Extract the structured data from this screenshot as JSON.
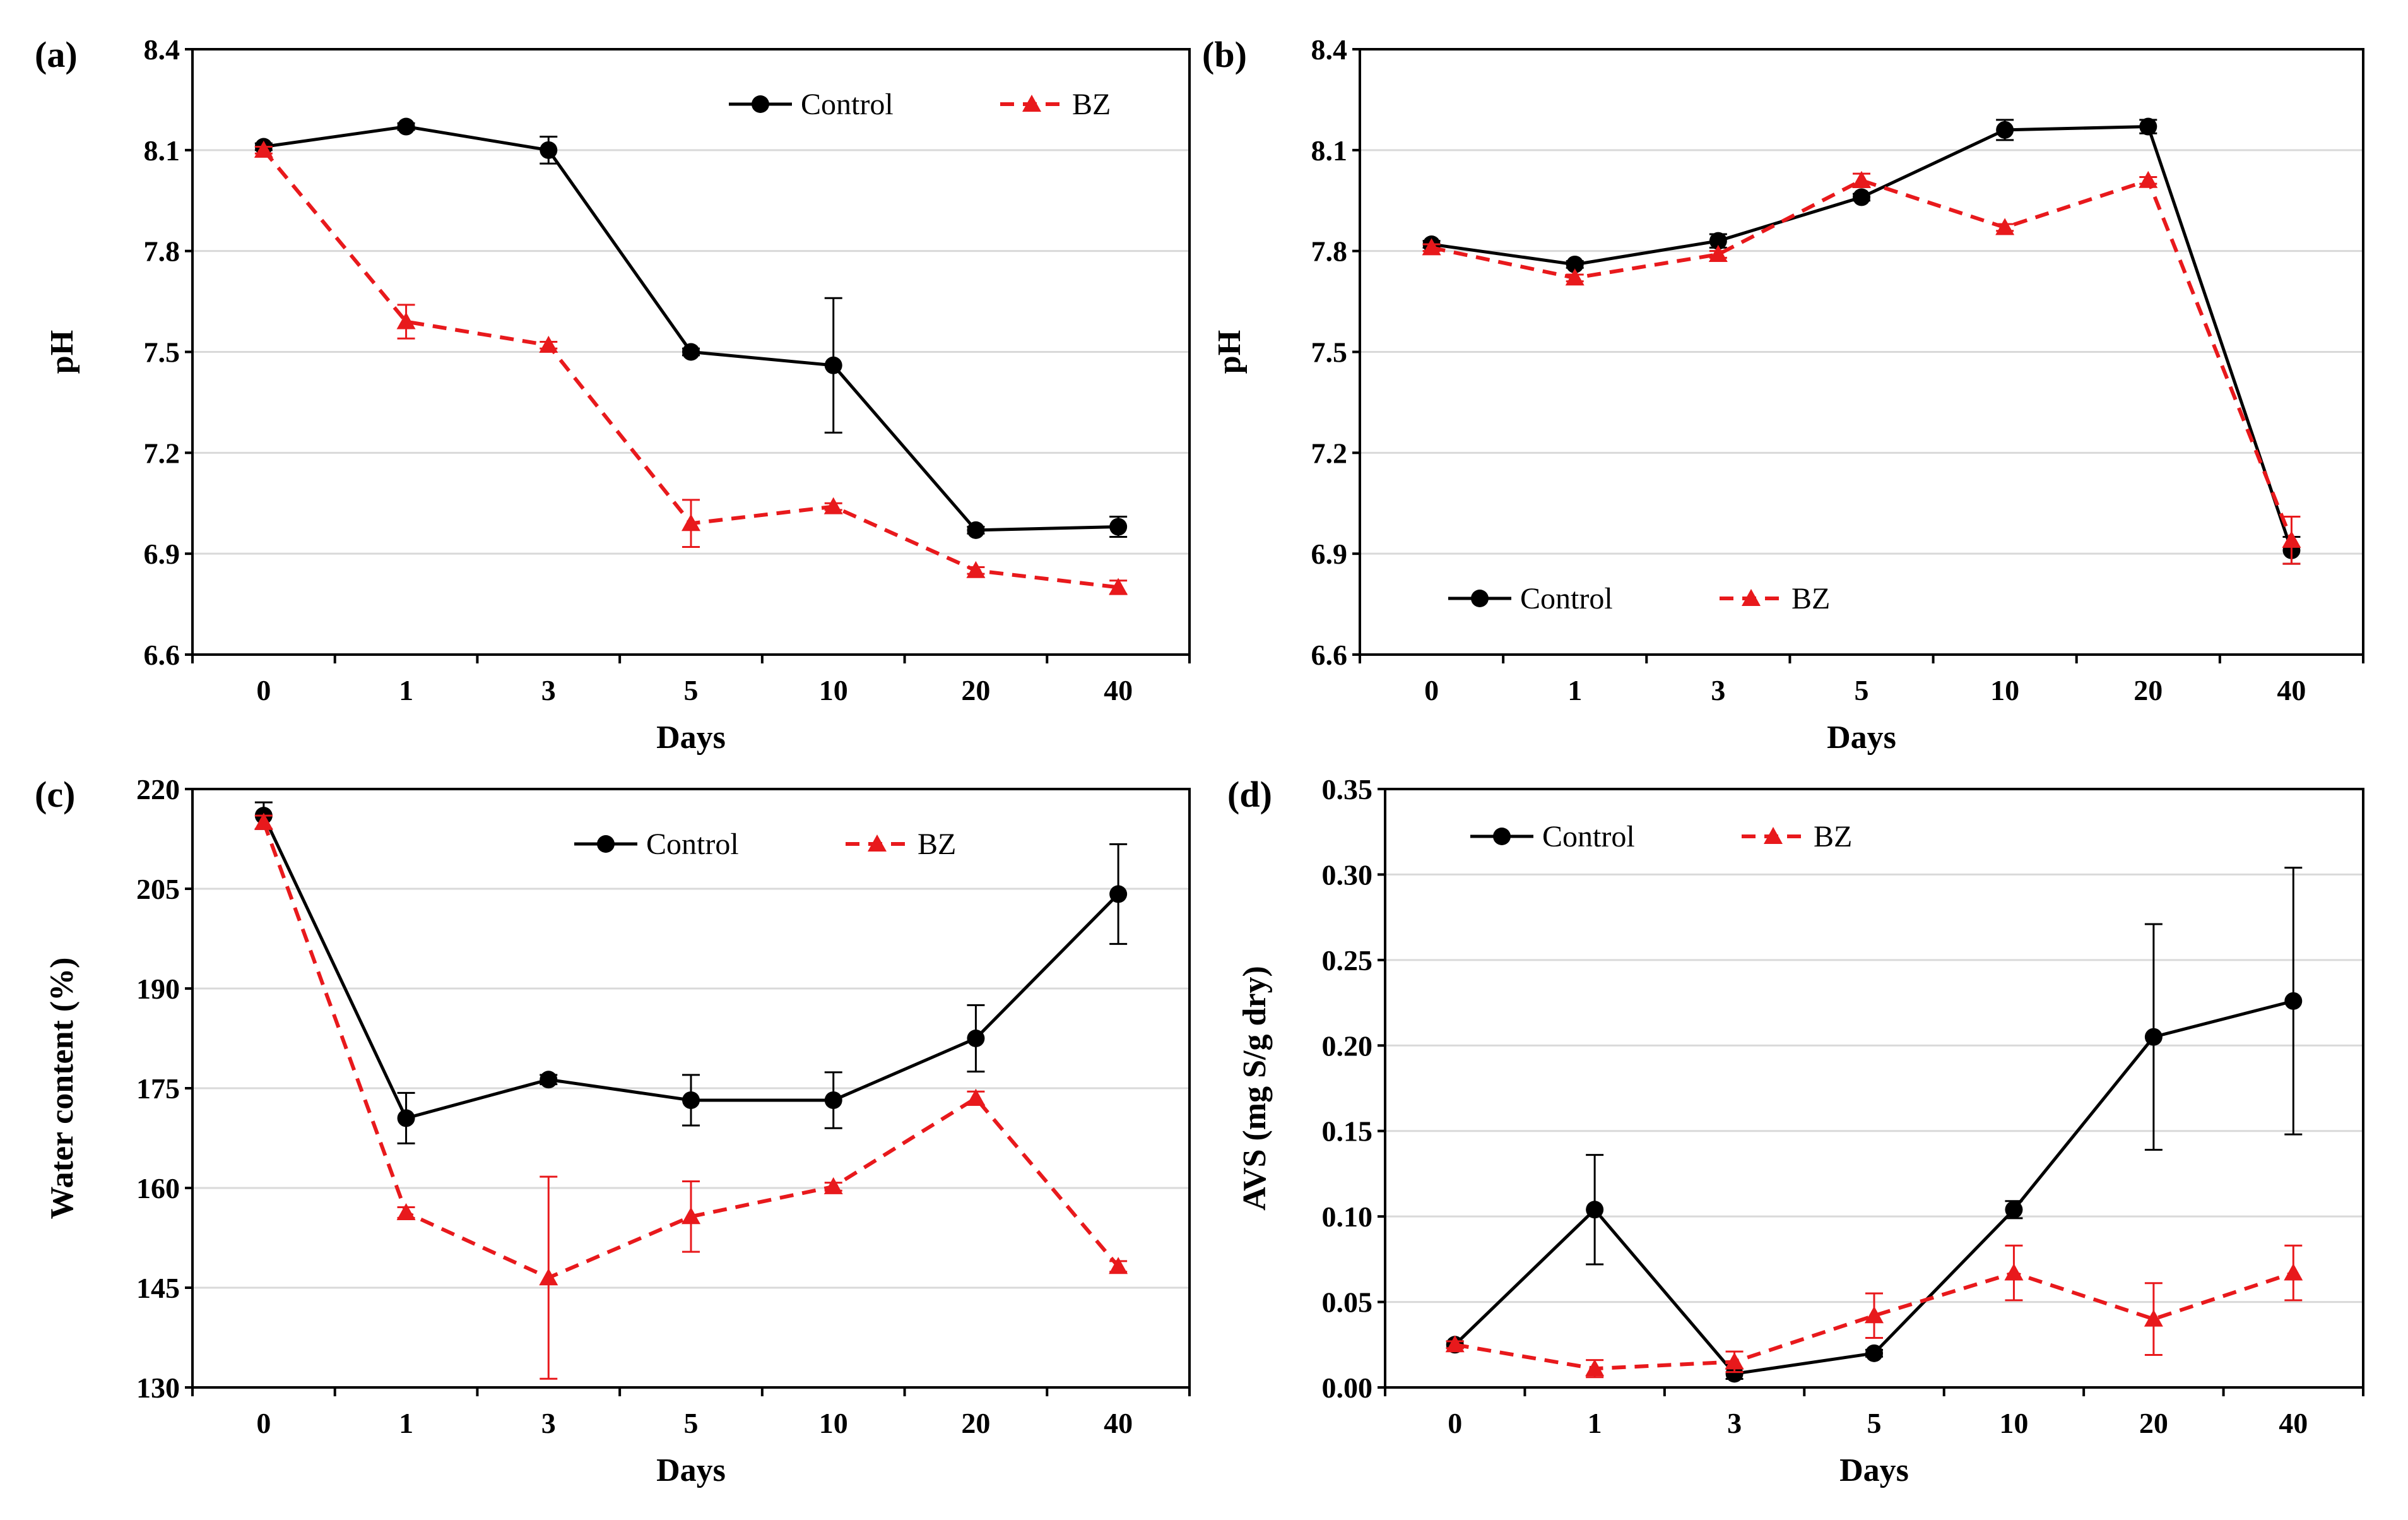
{
  "colors": {
    "control": "#000000",
    "bz": "#e8191c",
    "grid": "#d9d9d9",
    "axis": "#000000"
  },
  "legend": {
    "control_label": "Control",
    "bz_label": "BZ"
  },
  "chart_data": [
    {
      "id": "a",
      "panel_label": "(a)",
      "type": "line",
      "xlabel": "Days",
      "ylabel": "pH",
      "categories": [
        "0",
        "1",
        "3",
        "5",
        "10",
        "20",
        "40"
      ],
      "ylim": [
        6.6,
        8.4
      ],
      "yticks": [
        "6.6",
        "6.9",
        "7.2",
        "7.5",
        "7.8",
        "8.1",
        "8.4"
      ],
      "legend_position": "top-right",
      "series": [
        {
          "name": "Control",
          "values": [
            8.11,
            8.17,
            8.1,
            7.5,
            7.46,
            6.97,
            6.98
          ],
          "errors": [
            0.01,
            0.01,
            0.04,
            0.01,
            0.2,
            0.01,
            0.03
          ]
        },
        {
          "name": "BZ",
          "values": [
            8.1,
            7.59,
            7.52,
            6.99,
            7.04,
            6.85,
            6.8
          ],
          "errors": [
            0.01,
            0.05,
            0.01,
            0.07,
            0.01,
            0.01,
            0.02
          ]
        }
      ]
    },
    {
      "id": "b",
      "panel_label": "(b)",
      "type": "line",
      "xlabel": "Days",
      "ylabel": "pH",
      "categories": [
        "0",
        "1",
        "3",
        "5",
        "10",
        "20",
        "40"
      ],
      "ylim": [
        6.6,
        8.4
      ],
      "yticks": [
        "6.6",
        "6.9",
        "7.2",
        "7.5",
        "7.8",
        "8.1",
        "8.4"
      ],
      "legend_position": "bottom-left",
      "series": [
        {
          "name": "Control",
          "values": [
            7.82,
            7.76,
            7.83,
            7.96,
            8.16,
            8.17,
            6.91
          ],
          "errors": [
            0.01,
            0.01,
            0.02,
            0.01,
            0.03,
            0.02,
            0.04
          ]
        },
        {
          "name": "BZ",
          "values": [
            7.81,
            7.72,
            7.79,
            8.01,
            7.87,
            8.01,
            6.94
          ],
          "errors": [
            0.01,
            0.01,
            0.01,
            0.02,
            0.01,
            0.01,
            0.07
          ]
        }
      ]
    },
    {
      "id": "c",
      "panel_label": "(c)",
      "type": "line",
      "xlabel": "Days",
      "ylabel": "Water content (%)",
      "categories": [
        "0",
        "1",
        "3",
        "5",
        "10",
        "20",
        "40"
      ],
      "ylim": [
        130,
        220
      ],
      "yticks": [
        "130",
        "145",
        "160",
        "175",
        "190",
        "205",
        "220"
      ],
      "legend_position": "top-right",
      "series": [
        {
          "name": "Control",
          "values": [
            216,
            170.5,
            176.3,
            173.2,
            173.2,
            182.5,
            204.2
          ],
          "errors": [
            2.0,
            3.8,
            0.7,
            3.8,
            4.2,
            5.0,
            7.5
          ]
        },
        {
          "name": "BZ",
          "values": [
            215,
            156.3,
            146.5,
            155.7,
            160.2,
            173.5,
            148.2
          ],
          "errors": [
            1.0,
            0.8,
            15.2,
            5.3,
            0.6,
            1.0,
            0.8
          ]
        }
      ]
    },
    {
      "id": "d",
      "panel_label": "(d)",
      "type": "line",
      "xlabel": "Days",
      "ylabel": "AVS (mg S/g dry)",
      "categories": [
        "0",
        "1",
        "3",
        "5",
        "10",
        "20",
        "40"
      ],
      "ylim": [
        0,
        0.35
      ],
      "yticks": [
        "0.00",
        "0.05",
        "0.10",
        "0.15",
        "0.20",
        "0.25",
        "0.30",
        "0.35"
      ],
      "legend_position": "top-left",
      "series": [
        {
          "name": "Control",
          "values": [
            0.025,
            0.104,
            0.008,
            0.02,
            0.104,
            0.205,
            0.226
          ],
          "errors": [
            0.002,
            0.032,
            0.003,
            0.002,
            0.005,
            0.066,
            0.078
          ]
        },
        {
          "name": "BZ",
          "values": [
            0.025,
            0.011,
            0.015,
            0.042,
            0.067,
            0.04,
            0.067
          ],
          "errors": [
            0.002,
            0.005,
            0.006,
            0.013,
            0.016,
            0.021,
            0.016
          ]
        }
      ]
    }
  ]
}
